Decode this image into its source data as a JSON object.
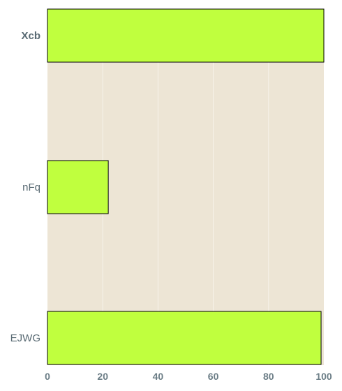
{
  "chart_data": {
    "type": "bar",
    "orientation": "horizontal",
    "categories": [
      "Xcb",
      "nFq",
      "EJWG"
    ],
    "values": [
      100,
      22,
      99
    ],
    "xlim": [
      0,
      100
    ],
    "xticks": [
      "0",
      "20",
      "40",
      "60",
      "80",
      "100"
    ],
    "title": "",
    "xlabel": "",
    "ylabel": "",
    "grid": true,
    "colors": {
      "bar_fill": "#c0ff3e",
      "bar_edge": "#000000",
      "plot_background": "#ede5d5",
      "grid": "#f7f3ea",
      "tick_text": "#6b7d86"
    }
  }
}
